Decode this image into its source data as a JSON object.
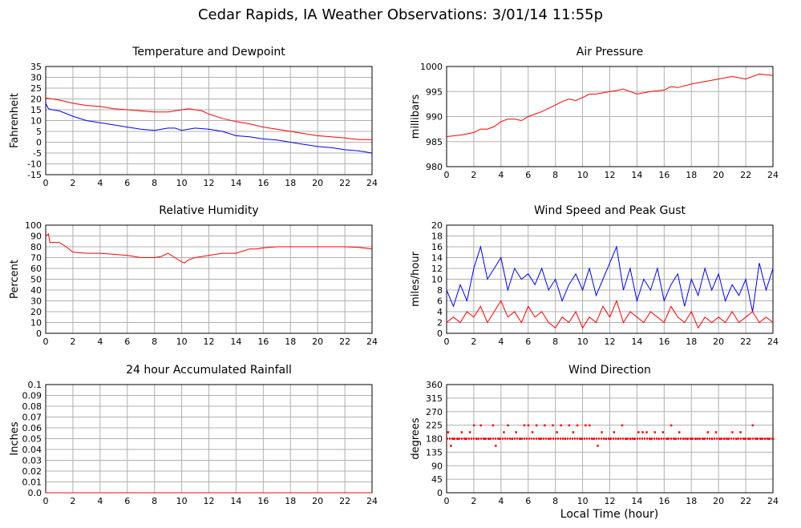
{
  "page": {
    "title": "Cedar Rapids, IA Weather Observations: 3/01/14 11:55p",
    "xaxis_title": "Local Time (hour)"
  },
  "colors": {
    "red": "#ff0000",
    "blue": "#0000ff",
    "grid": "#b0b0b0",
    "axis": "#000000"
  },
  "chart_data": [
    {
      "id": "temp",
      "type": "line",
      "title": "Temperature and Dewpoint",
      "ylabel": "Fahrenheit",
      "xlim": [
        0,
        24
      ],
      "ylim": [
        -15,
        35
      ],
      "xticks": [
        0,
        2,
        4,
        6,
        8,
        10,
        12,
        14,
        16,
        18,
        20,
        22,
        24
      ],
      "yticks": [
        -15,
        -10,
        -5,
        0,
        5,
        10,
        15,
        20,
        25,
        30,
        35
      ],
      "grid": true,
      "series": [
        {
          "color": "#ff0000",
          "x": [
            0,
            1,
            2,
            3,
            4,
            5,
            6,
            7,
            8,
            9,
            10,
            10.5,
            11,
            11.5,
            12,
            13,
            14,
            15,
            16,
            17,
            18,
            19,
            20,
            21,
            22,
            23,
            24
          ],
          "y": [
            20.5,
            19.5,
            18,
            17,
            16.5,
            15.5,
            15,
            14.5,
            14,
            14,
            15,
            15.5,
            15,
            14.5,
            13,
            11,
            9.5,
            8.5,
            7,
            6,
            5,
            4,
            3,
            2.5,
            2,
            1.2,
            1.2
          ]
        },
        {
          "color": "#0000ff",
          "x": [
            0,
            0.2,
            0.5,
            1,
            2,
            3,
            4,
            5,
            6,
            7,
            8,
            9,
            9.5,
            10,
            10.5,
            11,
            12,
            13,
            14,
            15,
            16,
            17,
            18,
            19,
            20,
            21,
            22,
            23,
            24
          ],
          "y": [
            18,
            15.5,
            15,
            14.5,
            12,
            10,
            9,
            8,
            7,
            6,
            5.5,
            6.5,
            6.5,
            5.5,
            6,
            6.5,
            6,
            5,
            3,
            2.5,
            1.5,
            1,
            0,
            -1,
            -2,
            -2.5,
            -3.5,
            -4,
            -5
          ]
        }
      ]
    },
    {
      "id": "pressure",
      "type": "line",
      "title": "Air Pressure",
      "ylabel": "millibars",
      "xlim": [
        0,
        24
      ],
      "ylim": [
        980,
        1000
      ],
      "yticklabels": [
        "980",
        "985",
        "990",
        "995",
        "1000"
      ],
      "xticks": [
        0,
        2,
        4,
        6,
        8,
        10,
        12,
        14,
        16,
        18,
        20,
        22,
        24
      ],
      "yticks": [
        980,
        985,
        990,
        995,
        1000
      ],
      "grid": true,
      "series": [
        {
          "color": "#ff0000",
          "x": [
            0,
            1,
            2,
            2.5,
            3,
            3.5,
            4,
            4.5,
            5,
            5.5,
            6,
            7,
            8,
            8.5,
            9,
            9.5,
            10,
            10.5,
            11,
            12,
            12.5,
            13,
            13.5,
            14,
            15,
            16,
            16.5,
            17,
            18,
            19,
            20,
            21,
            22,
            23,
            24
          ],
          "y": [
            986,
            986.3,
            986.8,
            987.5,
            987.5,
            988,
            989,
            989.5,
            989.5,
            989.2,
            990,
            991,
            992.3,
            993,
            993.5,
            993.2,
            993.8,
            994.5,
            994.5,
            995,
            995.2,
            995.5,
            995,
            994.5,
            995,
            995.3,
            996,
            995.8,
            996.5,
            997,
            997.5,
            998,
            997.5,
            998.5,
            998.2
          ]
        }
      ]
    },
    {
      "id": "humidity",
      "type": "line",
      "title": "Relative Humidity",
      "ylabel": "Percent",
      "xlim": [
        0,
        24
      ],
      "ylim": [
        0,
        100
      ],
      "xticks": [
        0,
        2,
        4,
        6,
        8,
        10,
        12,
        14,
        16,
        18,
        20,
        22,
        24
      ],
      "yticks": [
        0,
        10,
        20,
        30,
        40,
        50,
        60,
        70,
        80,
        90,
        100
      ],
      "grid": true,
      "series": [
        {
          "color": "#ff0000",
          "x": [
            0,
            0.2,
            0.3,
            0.5,
            1,
            1.5,
            2,
            3,
            4,
            5,
            6,
            7,
            8,
            8.5,
            9,
            9.5,
            10,
            10.2,
            10.5,
            11,
            12,
            13,
            14,
            15,
            15.5,
            16,
            17,
            18,
            19,
            20,
            21,
            22,
            23,
            24
          ],
          "y": [
            90,
            92,
            84,
            84,
            84,
            80,
            75,
            74,
            74,
            73,
            72,
            70,
            70,
            71,
            74,
            70,
            66,
            65,
            68,
            70,
            72,
            74,
            74,
            78,
            78,
            79,
            80,
            80,
            80,
            80,
            80,
            80,
            79.5,
            78
          ]
        }
      ]
    },
    {
      "id": "wind",
      "type": "line",
      "title": "Wind Speed and Peak Gust",
      "ylabel": "miles/hour",
      "xlim": [
        0,
        24
      ],
      "ylim": [
        0,
        20
      ],
      "xticks": [
        0,
        2,
        4,
        6,
        8,
        10,
        12,
        14,
        16,
        18,
        20,
        22,
        24
      ],
      "yticks": [
        0,
        2,
        4,
        6,
        8,
        10,
        12,
        14,
        16,
        18,
        20
      ],
      "grid": true,
      "series": [
        {
          "color": "#0000ff",
          "x": [
            0,
            0.5,
            1,
            1.5,
            2,
            2.5,
            3,
            3.5,
            4,
            4.5,
            5,
            5.5,
            6,
            6.5,
            7,
            7.5,
            8,
            8.5,
            9,
            9.5,
            10,
            10.5,
            11,
            11.5,
            12,
            12.5,
            13,
            13.5,
            14,
            14.5,
            15,
            15.5,
            16,
            16.5,
            17,
            17.5,
            18,
            18.5,
            19,
            19.5,
            20,
            20.5,
            21,
            21.5,
            22,
            22.5,
            23,
            23.5,
            24
          ],
          "y": [
            8,
            5,
            9,
            6,
            12,
            16,
            10,
            12,
            14,
            8,
            12,
            10,
            11,
            9,
            12,
            8,
            10,
            6,
            9,
            11,
            8,
            12,
            7,
            10,
            13,
            16,
            8,
            12,
            6,
            10,
            8,
            12,
            6,
            9,
            11,
            5,
            10,
            7,
            12,
            8,
            11,
            6,
            9,
            7,
            10,
            4,
            13,
            8,
            12
          ]
        },
        {
          "color": "#ff0000",
          "x": [
            0,
            0.5,
            1,
            1.5,
            2,
            2.5,
            3,
            3.5,
            4,
            4.5,
            5,
            5.5,
            6,
            6.5,
            7,
            7.5,
            8,
            8.5,
            9,
            9.5,
            10,
            10.5,
            11,
            11.5,
            12,
            12.5,
            13,
            13.5,
            14,
            14.5,
            15,
            15.5,
            16,
            16.5,
            17,
            17.5,
            18,
            18.5,
            19,
            19.5,
            20,
            20.5,
            21,
            21.5,
            22,
            22.5,
            23,
            23.5,
            24
          ],
          "y": [
            2,
            3,
            2,
            4,
            3,
            5,
            2,
            4,
            6,
            3,
            4,
            2,
            5,
            3,
            4,
            2,
            1,
            3,
            2,
            4,
            1,
            3,
            2,
            5,
            3,
            6,
            2,
            4,
            3,
            2,
            4,
            3,
            2,
            5,
            3,
            2,
            4,
            1,
            3,
            2,
            3,
            2,
            4,
            2,
            3,
            4,
            2,
            3,
            2
          ]
        }
      ]
    },
    {
      "id": "rain",
      "type": "line",
      "title": "24 hour Accumulated Rainfall",
      "ylabel": "Inches",
      "xlim": [
        0,
        24
      ],
      "ylim": [
        0,
        0.1
      ],
      "xticks": [
        0,
        2,
        4,
        6,
        8,
        10,
        12,
        14,
        16,
        18,
        20,
        22,
        24
      ],
      "yticks": [
        0,
        0.01,
        0.02,
        0.03,
        0.04,
        0.05,
        0.06,
        0.07,
        0.08,
        0.09,
        0.1
      ],
      "yticklabels": [
        "0.0",
        "0.01",
        "0.02",
        "0.03",
        "0.04",
        "0.05",
        "0.06",
        "0.07",
        "0.08",
        "0.09",
        "0.1"
      ],
      "grid": true,
      "series": [
        {
          "color": "#ff0000",
          "x": [
            0,
            24
          ],
          "y": [
            0,
            0
          ]
        }
      ]
    },
    {
      "id": "direction",
      "type": "scatter",
      "title": "Wind Direction",
      "ylabel": "degrees",
      "xlim": [
        0,
        24
      ],
      "ylim": [
        0,
        360
      ],
      "xticks": [
        0,
        2,
        4,
        6,
        8,
        10,
        12,
        14,
        16,
        18,
        20,
        22,
        24
      ],
      "yticks": [
        0,
        45,
        90,
        135,
        180,
        225,
        270,
        315,
        360
      ],
      "grid": true,
      "series": [
        {
          "color": "#ff0000",
          "x": [
            0.1,
            0.3,
            0.5,
            0.8,
            1.1,
            1.4,
            1.7,
            2.0,
            2.2,
            2.5,
            2.8,
            3.1,
            3.4,
            3.6,
            3.9,
            4.2,
            4.5,
            4.8,
            5.1,
            5.4,
            5.7,
            6.0,
            6.3,
            6.6,
            6.9,
            7.2,
            7.5,
            7.8,
            8.1,
            8.4,
            8.7,
            9.0,
            9.3,
            9.6,
            9.9,
            10.2,
            10.5,
            10.8,
            11.1,
            11.4,
            11.7,
            12.0,
            12.3,
            12.6,
            12.9,
            13.2,
            13.5,
            13.8,
            14.1,
            14.4,
            14.7,
            15.0,
            15.3,
            15.6,
            15.9,
            16.2,
            16.5,
            16.8,
            17.1,
            17.4,
            17.7,
            18.0,
            18.3,
            18.6,
            18.9,
            19.2,
            19.5,
            19.8,
            20.1,
            20.4,
            20.7,
            21.0,
            21.3,
            21.6,
            21.9,
            22.2,
            22.5,
            22.8,
            23.1,
            23.4,
            23.7,
            24
          ],
          "y": [
            202,
            157,
            180,
            180,
            202,
            180,
            202,
            225,
            180,
            225,
            180,
            180,
            225,
            157,
            180,
            202,
            225,
            180,
            202,
            180,
            225,
            225,
            202,
            225,
            180,
            225,
            180,
            225,
            202,
            225,
            180,
            225,
            202,
            225,
            180,
            225,
            225,
            180,
            157,
            202,
            180,
            180,
            202,
            180,
            225,
            180,
            180,
            180,
            202,
            202,
            202,
            180,
            202,
            180,
            202,
            180,
            225,
            180,
            202,
            180,
            180,
            180,
            180,
            180,
            180,
            202,
            180,
            202,
            180,
            180,
            180,
            202,
            180,
            202,
            180,
            180,
            225,
            180,
            180,
            180,
            180,
            180
          ]
        }
      ]
    }
  ]
}
